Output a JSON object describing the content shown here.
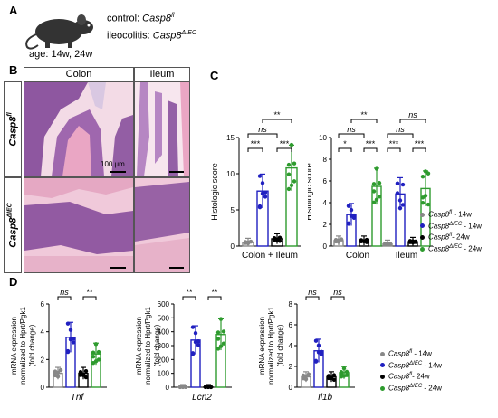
{
  "panels": {
    "a": "A",
    "b": "B",
    "c": "C",
    "d": "D"
  },
  "panelA": {
    "control_prefix": "control: ",
    "control_geno": "Casp8",
    "control_sup": "fl",
    "ileo_prefix": "ileocolitis: ",
    "ileo_geno": "Casp8",
    "ileo_sup": "ΔIEC",
    "age": "age: 14w, 24w"
  },
  "panelB": {
    "col_colon": "Colon",
    "col_ileum": "Ileum",
    "row1_geno": "Casp8",
    "row1_sup": "fl",
    "row2_geno": "Casp8",
    "row2_sup": "ΔIEC",
    "scale": "100 µm"
  },
  "colors": {
    "grey": "#888888",
    "blue": "#2020c0",
    "black": "#000000",
    "green": "#2e9b2e",
    "hematoxylin": "#6a3a8a",
    "eosin": "#e48fb2",
    "background": "#f3dbe6"
  },
  "legend": [
    {
      "geno": "Casp8",
      "sup": "fl",
      "age": " - 14w",
      "color": "#888888"
    },
    {
      "geno": "Casp8",
      "sup": "ΔIEC",
      "age": " - 14w",
      "color": "#2020c0"
    },
    {
      "geno": "Casp8",
      "sup": "fl",
      "age": "- 24w",
      "color": "#000000"
    },
    {
      "geno": "Casp8",
      "sup": "ΔIEC",
      "age": " - 24w",
      "color": "#2e9b2e"
    }
  ],
  "chart_data": [
    {
      "id": "C1",
      "type": "bar",
      "ylabel": "Histologic score",
      "ylim": [
        0,
        15
      ],
      "yticks": [
        0,
        5,
        10,
        15
      ],
      "categories": [
        "Colon + Ileum"
      ],
      "series": [
        {
          "values": [
            0.5
          ]
        },
        {
          "values": [
            7.6
          ]
        },
        {
          "values": [
            1.0
          ]
        },
        {
          "values": [
            10.8
          ]
        }
      ],
      "significance": [
        {
          "label": "***",
          "from": 0,
          "to": 1,
          "level": 1
        },
        {
          "label": "***",
          "from": 2,
          "to": 3,
          "level": 1
        },
        {
          "label": "ns",
          "from": 0,
          "to": 2,
          "level": 2
        },
        {
          "label": "**",
          "from": 1,
          "to": 3,
          "level": 3
        }
      ]
    },
    {
      "id": "C2",
      "type": "bar",
      "ylabel": "Histologic score",
      "ylim": [
        0,
        10
      ],
      "yticks": [
        0,
        2,
        4,
        6,
        8,
        10
      ],
      "categories": [
        "Colon",
        "Ileum"
      ],
      "series": [
        {
          "values": [
            0.5,
            0.2
          ]
        },
        {
          "values": [
            2.9,
            4.8
          ]
        },
        {
          "values": [
            0.5,
            0.4
          ]
        },
        {
          "values": [
            5.5,
            5.3
          ]
        }
      ],
      "significance": [
        {
          "group": 0,
          "label": "*",
          "from": 0,
          "to": 1,
          "level": 1
        },
        {
          "group": 0,
          "label": "***",
          "from": 2,
          "to": 3,
          "level": 1
        },
        {
          "group": 0,
          "label": "ns",
          "from": 0,
          "to": 2,
          "level": 2
        },
        {
          "group": 0,
          "label": "**",
          "from": 1,
          "to": 3,
          "level": 3
        },
        {
          "group": 1,
          "label": "***",
          "from": 0,
          "to": 1,
          "level": 1
        },
        {
          "group": 1,
          "label": "***",
          "from": 2,
          "to": 3,
          "level": 1
        },
        {
          "group": 1,
          "label": "ns",
          "from": 0,
          "to": 2,
          "level": 2
        },
        {
          "group": 1,
          "label": "ns",
          "from": 1,
          "to": 3,
          "level": 3
        }
      ]
    },
    {
      "id": "D1",
      "type": "bar",
      "gene": "Tnf",
      "ylim": [
        0,
        6
      ],
      "yticks": [
        0,
        2,
        4,
        6
      ],
      "ylabel_lines": [
        "mRNA expression",
        "normalized to Hprt/Pgk1",
        "(fold change)"
      ],
      "series": [
        {
          "values": [
            1.0
          ]
        },
        {
          "values": [
            3.6
          ]
        },
        {
          "values": [
            1.0
          ]
        },
        {
          "values": [
            2.4
          ]
        }
      ],
      "significance": [
        {
          "label": "ns",
          "from": 0,
          "to": 1
        },
        {
          "label": "**",
          "from": 2,
          "to": 3
        }
      ]
    },
    {
      "id": "D2",
      "type": "bar",
      "gene": "Lcn2",
      "ylim": [
        0,
        600
      ],
      "yticks": [
        0,
        1,
        2,
        100,
        200,
        300,
        400,
        500,
        600
      ],
      "ylabel_lines": [
        "mRNA expression",
        "normalized to Hprt/Pgk1",
        "(fold change)"
      ],
      "series": [
        {
          "values": [
            1.0
          ]
        },
        {
          "values": [
            340
          ]
        },
        {
          "values": [
            1.0
          ]
        },
        {
          "values": [
            380
          ]
        }
      ],
      "significance": [
        {
          "label": "**",
          "from": 0,
          "to": 1
        },
        {
          "label": "**",
          "from": 2,
          "to": 3
        }
      ]
    },
    {
      "id": "D3",
      "type": "bar",
      "gene": "Il1b",
      "ylim": [
        0,
        8
      ],
      "yticks": [
        0,
        2,
        4,
        6,
        8
      ],
      "ylabel_lines": [
        "mRNA expression",
        "normalized to Hprt/Pgk1",
        "(fold change)"
      ],
      "series": [
        {
          "values": [
            1.0
          ]
        },
        {
          "values": [
            3.5
          ]
        },
        {
          "values": [
            1.0
          ]
        },
        {
          "values": [
            1.4
          ]
        }
      ],
      "significance": [
        {
          "label": "ns",
          "from": 0,
          "to": 1
        },
        {
          "label": "ns",
          "from": 2,
          "to": 3
        }
      ]
    }
  ]
}
